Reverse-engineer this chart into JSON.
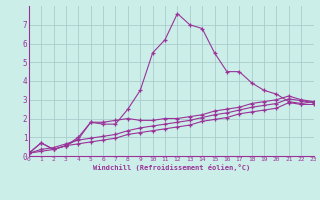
{
  "background_color": "#cceee8",
  "grid_color": "#aacccc",
  "line_color": "#993399",
  "xlabel": "Windchill (Refroidissement éolien,°C)",
  "xlim": [
    0,
    23
  ],
  "ylim": [
    0,
    8
  ],
  "xticks": [
    0,
    1,
    2,
    3,
    4,
    5,
    6,
    7,
    8,
    9,
    10,
    11,
    12,
    13,
    14,
    15,
    16,
    17,
    18,
    19,
    20,
    21,
    22,
    23
  ],
  "yticks": [
    0,
    1,
    2,
    3,
    4,
    5,
    6,
    7
  ],
  "series": [
    [
      0.15,
      0.7,
      0.35,
      0.55,
      1.0,
      1.8,
      1.7,
      1.7,
      2.5,
      3.5,
      5.5,
      6.2,
      7.6,
      7.0,
      6.8,
      5.5,
      4.5,
      4.5,
      3.9,
      3.5,
      3.3,
      2.9,
      2.8,
      2.9
    ],
    [
      0.15,
      0.7,
      0.35,
      0.55,
      0.9,
      1.8,
      1.8,
      1.9,
      2.0,
      1.9,
      1.9,
      2.0,
      2.0,
      2.1,
      2.2,
      2.4,
      2.5,
      2.6,
      2.8,
      2.9,
      3.0,
      3.2,
      3.0,
      2.9
    ],
    [
      0.15,
      0.35,
      0.45,
      0.65,
      0.85,
      0.95,
      1.05,
      1.15,
      1.35,
      1.5,
      1.6,
      1.7,
      1.8,
      1.9,
      2.05,
      2.2,
      2.3,
      2.45,
      2.6,
      2.7,
      2.8,
      3.05,
      2.95,
      2.85
    ],
    [
      0.15,
      0.25,
      0.35,
      0.55,
      0.65,
      0.75,
      0.85,
      0.95,
      1.15,
      1.25,
      1.35,
      1.45,
      1.55,
      1.65,
      1.85,
      1.95,
      2.05,
      2.25,
      2.35,
      2.45,
      2.55,
      2.85,
      2.75,
      2.75
    ]
  ]
}
